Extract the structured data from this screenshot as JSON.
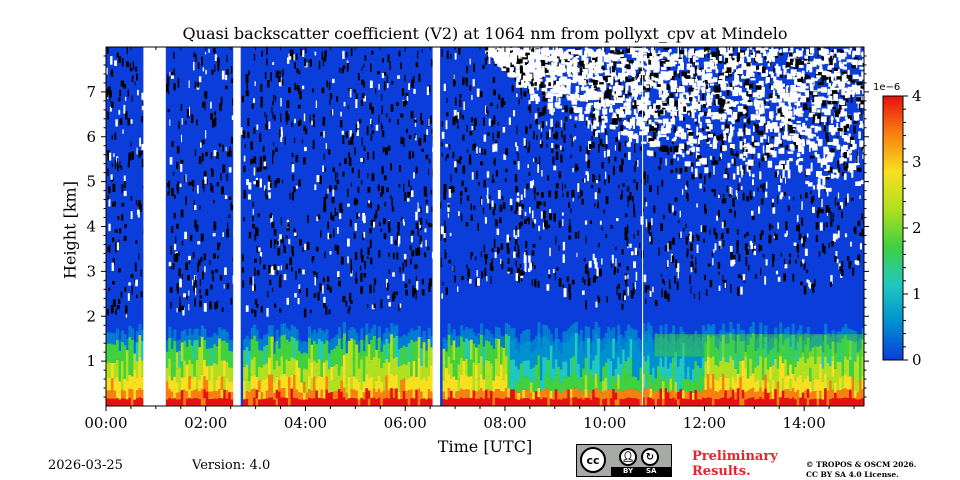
{
  "chart_data": {
    "type": "heatmap",
    "title": "Quasi backscatter coefficient (V2) at 1064 nm from pollyxt_cpv at Mindelo",
    "xlabel": "Time [UTC]",
    "ylabel": "Height [km]",
    "x_ticks": [
      "00:00",
      "02:00",
      "04:00",
      "06:00",
      "08:00",
      "10:00",
      "12:00",
      "14:00"
    ],
    "x_tick_hours": [
      0,
      2,
      4,
      6,
      8,
      10,
      12,
      14
    ],
    "xlim_hours": [
      0,
      15.2
    ],
    "y_ticks": [
      "1",
      "2",
      "3",
      "4",
      "5",
      "6",
      "7"
    ],
    "y_tick_values": [
      1,
      2,
      3,
      4,
      5,
      6,
      7
    ],
    "ylim_km": [
      0,
      8
    ],
    "colorbar": {
      "ticks": [
        "0",
        "1",
        "2",
        "3",
        "4"
      ],
      "tick_values": [
        0,
        1,
        2,
        3,
        4
      ],
      "range": [
        0,
        4
      ],
      "exponent_label": "1e−6",
      "colormap": [
        "#0a3dd9",
        "#0090d0",
        "#20c8c0",
        "#40d040",
        "#b0e020",
        "#f8e020",
        "#f88010",
        "#e81010"
      ]
    },
    "data_gaps_hours": [
      [
        0.75,
        1.2
      ],
      [
        2.55,
        2.7
      ],
      [
        6.55,
        6.7
      ]
    ],
    "thin_gap_hours": [
      10.75
    ],
    "layers": [
      {
        "name": "boundary-layer aerosol",
        "top_km": 1.55,
        "value_range": [
          1.5,
          4.0
        ]
      },
      {
        "name": "background",
        "top_km": 8.0,
        "value_range": [
          0,
          0.3
        ]
      }
    ],
    "noise_onset_km_by_hour": [
      [
        0,
        2.0
      ],
      [
        6,
        2.2
      ],
      [
        8,
        3.0
      ],
      [
        10,
        2.2
      ],
      [
        12,
        2.5
      ],
      [
        15.2,
        2.8
      ]
    ],
    "heavy_noise_onset_km_by_hour": [
      [
        7.6,
        8.0
      ],
      [
        8.5,
        6.8
      ],
      [
        10,
        6.0
      ],
      [
        12,
        5.2
      ],
      [
        15.2,
        4.6
      ]
    ]
  },
  "footer": {
    "date": "2026-03-25",
    "version": "Version: 4.0",
    "license_badge": {
      "main": "cc",
      "by": "BY",
      "sa": "SA"
    },
    "preliminary_line1": "Preliminary",
    "preliminary_line2": "Results.",
    "copyright_line1": "© TROPOS & OSCM 2026.",
    "copyright_line2": "CC BY SA 4.0 License."
  }
}
